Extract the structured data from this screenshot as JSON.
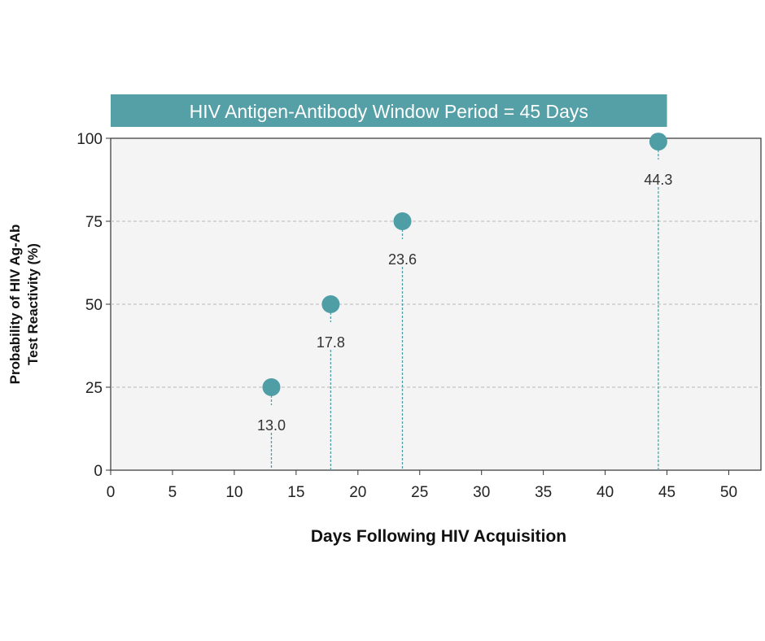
{
  "chart_data": {
    "type": "scatter",
    "title": "HIV Antigen-Antibody Window Period = 45 Days",
    "xlabel": "Days Following HIV Acquisition",
    "ylabel_lines": [
      "Probability of HIV Ag-Ab",
      "Test Reactivity (%)"
    ],
    "xlim": [
      0,
      52.6
    ],
    "ylim": [
      0,
      100
    ],
    "x_ticks": [
      0,
      5,
      10,
      15,
      20,
      25,
      30,
      35,
      40,
      45,
      50
    ],
    "y_ticks": [
      0,
      25,
      50,
      75,
      100
    ],
    "grid": "horizontal dashed",
    "points": [
      {
        "x": 13.0,
        "y": 25,
        "label": "13.0"
      },
      {
        "x": 17.8,
        "y": 50,
        "label": "17.8"
      },
      {
        "x": 23.6,
        "y": 75,
        "label": "23.6"
      },
      {
        "x": 44.3,
        "y": 99,
        "label": "44.3"
      }
    ],
    "title_banner_extent_days": [
      0,
      45
    ],
    "colors": {
      "point": "#4f9ea6",
      "banner": "#55a0a6",
      "plot_bg": "#f4f4f4",
      "grid": "#b8b8b8"
    }
  }
}
